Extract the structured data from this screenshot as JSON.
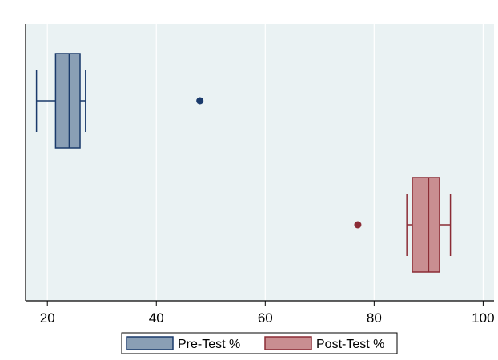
{
  "chart_data": {
    "type": "boxplot",
    "orientation": "horizontal",
    "title": "",
    "xlabel": "",
    "ylabel": "",
    "xlim": [
      16,
      102
    ],
    "x_ticks": [
      20,
      40,
      60,
      80,
      100
    ],
    "grid": true,
    "legend_position": "bottom",
    "series": [
      {
        "name": "Pre-Test %",
        "color": "#8a9fb5",
        "line_color": "#1a3a6b",
        "whisker_low": 18,
        "q1": 21.5,
        "median": 24,
        "q3": 26,
        "whisker_high": 27,
        "outliers": [
          48
        ]
      },
      {
        "name": "Post-Test %",
        "color": "#c98e91",
        "line_color": "#8b2c35",
        "whisker_low": 86,
        "q1": 87,
        "median": 90,
        "q3": 92,
        "whisker_high": 94,
        "outliers": [
          77
        ]
      }
    ]
  }
}
